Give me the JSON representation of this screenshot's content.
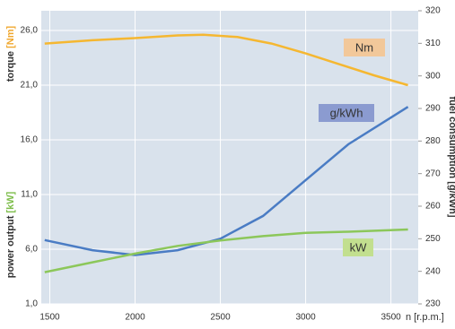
{
  "chart_data": {
    "type": "line",
    "x_label": "n [r.p.m.]",
    "y_labels": [
      {
        "text": "torque",
        "unit": "[Nm]",
        "color": "#f0a830"
      },
      {
        "text": "power output",
        "unit": "[kW]",
        "color": "#7dbd4a"
      }
    ],
    "y2_label": "fuel consumption [g/kWh]",
    "xlim": [
      1450,
      3660
    ],
    "xticks": [
      1500,
      2000,
      2500,
      3000,
      3500
    ],
    "ylim": [
      1,
      27.8
    ],
    "yticks": [
      {
        "value": 1,
        "label": "1,0"
      },
      {
        "value": 6,
        "label": "6,0"
      },
      {
        "value": 11,
        "label": "11,0"
      },
      {
        "value": 16,
        "label": "16,0"
      },
      {
        "value": 21,
        "label": "21,0"
      },
      {
        "value": 26,
        "label": "26,0"
      }
    ],
    "y2lim": [
      230,
      320
    ],
    "y2ticks": [
      230,
      240,
      250,
      260,
      270,
      280,
      290,
      300,
      310,
      320
    ],
    "grid": true,
    "series": [
      {
        "name": "Nm",
        "color": "#f5b731",
        "label_color": "#f2c89a",
        "x": [
          1470,
          1750,
          2000,
          2250,
          2400,
          2600,
          2800,
          3000,
          3200,
          3400,
          3600
        ],
        "values": [
          24.8,
          25.1,
          25.3,
          25.55,
          25.6,
          25.4,
          24.8,
          23.9,
          22.9,
          21.9,
          21.0
        ]
      },
      {
        "name": "g/kWh",
        "color": "#4a7cc4",
        "label_color": "#8b9bd0",
        "axis": "y2",
        "x": [
          1470,
          1750,
          2000,
          2250,
          2500,
          2750,
          3000,
          3250,
          3600
        ],
        "values": [
          249.6,
          246.5,
          245,
          246.5,
          250,
          257,
          268,
          279,
          290.5
        ]
      },
      {
        "name": "kW",
        "color": "#8cc75a",
        "label_color": "#c2df8f",
        "x": [
          1470,
          1750,
          2000,
          2250,
          2500,
          2750,
          3000,
          3250,
          3600
        ],
        "values": [
          3.9,
          4.8,
          5.6,
          6.3,
          6.8,
          7.2,
          7.5,
          7.6,
          7.8
        ]
      }
    ]
  }
}
